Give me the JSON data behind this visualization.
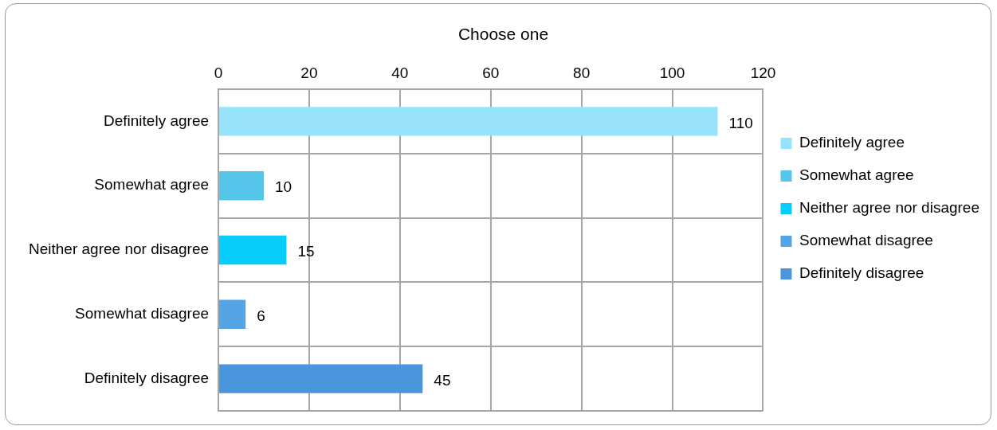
{
  "chart_data": {
    "type": "bar",
    "orientation": "horizontal",
    "stacked": true,
    "title": "Choose one",
    "categories": [
      "Definitely agree",
      "Somewhat agree",
      "Neither agree nor disagree",
      "Somewhat disagree",
      "Definitely disagree"
    ],
    "series": [
      {
        "name": "Definitely agree",
        "color": "#97e3fb",
        "values": [
          110,
          null,
          null,
          null,
          null
        ]
      },
      {
        "name": "Somewhat agree",
        "color": "#56c5ea",
        "values": [
          null,
          10,
          null,
          null,
          null
        ]
      },
      {
        "name": "Neither agree nor disagree",
        "color": "#06ccfa",
        "values": [
          null,
          null,
          15,
          null,
          null
        ]
      },
      {
        "name": "Somewhat disagree",
        "color": "#55a5e6",
        "values": [
          null,
          null,
          null,
          6,
          null
        ]
      },
      {
        "name": "Definitely disagree",
        "color": "#4a96dc",
        "values": [
          null,
          null,
          null,
          null,
          45
        ]
      }
    ],
    "xlim": [
      0,
      120
    ],
    "xticks": [
      0,
      20,
      40,
      60,
      80,
      100,
      120
    ],
    "grid": true,
    "legend": "right",
    "data_labels": true
  }
}
